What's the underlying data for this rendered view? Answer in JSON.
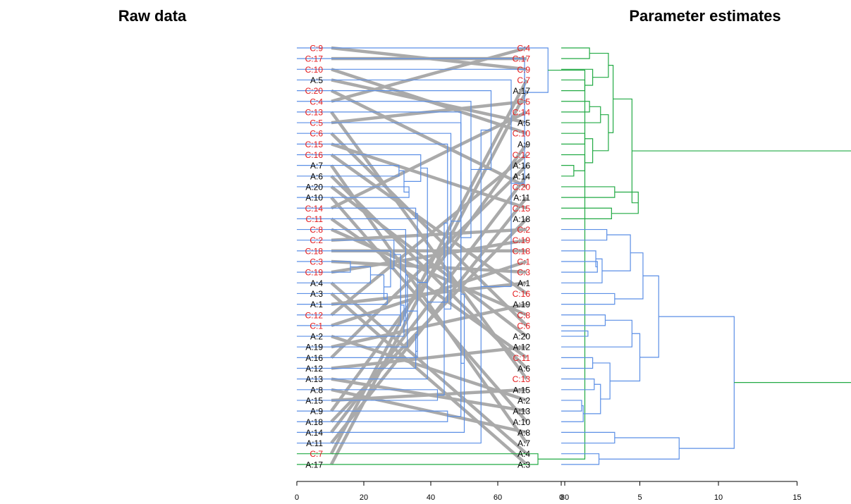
{
  "chart_data": {
    "type": "tanglegram",
    "colors": {
      "highlight_label": "#e41a1c",
      "normal_label": "#000000",
      "cluster_blue": "#5b8fe6",
      "cluster_green": "#22aa44",
      "connector": "#aaaaaa",
      "axis": "#000000"
    },
    "left": {
      "title": "Raw data",
      "axis_ticks": [
        "80",
        "60",
        "40",
        "20",
        "0"
      ],
      "axis_range": [
        0,
        80
      ],
      "axis_direction": "reversed",
      "leaves": [
        "C:9",
        "C:17",
        "C:10",
        "A:5",
        "C:20",
        "C:4",
        "C:13",
        "C:5",
        "C:6",
        "C:15",
        "C:16",
        "A:7",
        "A:6",
        "A:20",
        "A:10",
        "C:14",
        "C:11",
        "C:8",
        "C:2",
        "C:18",
        "C:3",
        "C:19",
        "A:4",
        "A:3",
        "A:1",
        "C:12",
        "C:1",
        "A:2",
        "A:19",
        "A:16",
        "A:12",
        "A:13",
        "A:8",
        "A:15",
        "A:9",
        "A:18",
        "A:14",
        "A:11",
        "C:7",
        "A:17"
      ],
      "merges": [
        {
          "a": 11,
          "b": 12,
          "h": 30.5,
          "c": "blue"
        },
        {
          "a": 13,
          "b": 14,
          "h": 33.5,
          "c": "blue"
        },
        {
          "a": 11.5,
          "b": 13.5,
          "h": 32.0,
          "c": "blue"
        },
        {
          "a": 10,
          "b": 12.5,
          "h": 37.0,
          "c": "blue"
        },
        {
          "a": 15,
          "b": 16,
          "h": 35.5,
          "c": "blue"
        },
        {
          "a": 20,
          "b": 21,
          "h": 16.0,
          "c": "blue"
        },
        {
          "a": 22,
          "b": 20.5,
          "h": 22.0,
          "c": "blue"
        },
        {
          "a": 23,
          "b": 24,
          "h": 27.0,
          "c": "blue"
        },
        {
          "a": 21.25,
          "b": 23.5,
          "h": 26.0,
          "c": "blue"
        },
        {
          "a": 19,
          "b": 22.375,
          "h": 28.0,
          "c": "blue"
        },
        {
          "a": 18,
          "b": 20.6875,
          "h": 29.0,
          "c": "blue"
        },
        {
          "a": 25,
          "b": 19.34375,
          "h": 31.0,
          "c": "blue"
        },
        {
          "a": 26,
          "b": 22.171875,
          "h": 31.0,
          "c": "blue"
        },
        {
          "a": 27,
          "b": 24.0859375,
          "h": 32.0,
          "c": "blue"
        },
        {
          "a": 17,
          "b": 25.54296875,
          "h": 32.5,
          "c": "blue"
        },
        {
          "a": 28,
          "b": 21.271484375,
          "h": 33.0,
          "c": "blue"
        },
        {
          "a": 29,
          "b": 24.6357421875,
          "h": 36.0,
          "c": "blue"
        },
        {
          "a": 30,
          "b": 26.81787109375,
          "h": 35.5,
          "c": "blue"
        },
        {
          "a": 15.5,
          "b": 28.408935546875,
          "h": 36.0,
          "c": "blue"
        },
        {
          "a": 11.25,
          "b": 21.9544677734375,
          "h": 39.0,
          "c": "blue"
        },
        {
          "a": 31,
          "b": 16.60223388671875,
          "h": 39.0,
          "c": "blue"
        },
        {
          "a": 9,
          "b": 23.801116943359375,
          "h": 45.0,
          "c": "blue"
        },
        {
          "a": 32,
          "b": 33,
          "h": 42.0,
          "c": "blue"
        },
        {
          "a": 16.400558471679688,
          "b": 32.5,
          "h": 44.0,
          "c": "blue"
        },
        {
          "a": 8,
          "b": 24.450279235839844,
          "h": 46.0,
          "c": "blue"
        },
        {
          "a": 7,
          "b": 16.225139617919922,
          "h": 49.0,
          "c": "blue"
        },
        {
          "a": 34,
          "b": 35,
          "h": 45.0,
          "c": "blue"
        },
        {
          "a": 11.612569808959961,
          "b": 34.5,
          "h": 49.0,
          "c": "blue"
        },
        {
          "a": 36,
          "b": 23.05628490447998,
          "h": 50.0,
          "c": "blue"
        },
        {
          "a": 6,
          "b": 29.52814245223999,
          "h": 49.0,
          "c": "blue"
        },
        {
          "a": 5,
          "b": 17.764071226119995,
          "h": 52.0,
          "c": "blue"
        },
        {
          "a": 4,
          "b": 11.382035613059998,
          "h": 58.0,
          "c": "blue"
        },
        {
          "a": 37,
          "b": 7.691017806529999,
          "h": 55.0,
          "c": "blue"
        },
        {
          "a": 3,
          "b": 22.345508903265,
          "h": 64.0,
          "c": "blue"
        },
        {
          "a": 2,
          "b": 12.6727544516325,
          "h": 68.0,
          "c": "blue"
        },
        {
          "a": 1,
          "b": 7.33637722581625,
          "h": 68.0,
          "c": "blue"
        },
        {
          "a": 0,
          "b": 4.168188612908125,
          "h": 75.0,
          "c": "blue"
        },
        {
          "a": 38,
          "b": 39,
          "h": 72.0,
          "c": "green"
        },
        {
          "a": 2.0840943064540625,
          "b": 38.5,
          "h": 86.0,
          "c": "green"
        }
      ]
    },
    "right": {
      "title": "Parameter estimates",
      "axis_ticks": [
        "0",
        "5",
        "10",
        "15"
      ],
      "axis_range": [
        0,
        15
      ],
      "leaves": [
        "C:4",
        "C:17",
        "C:9",
        "C:7",
        "A:17",
        "C:5",
        "C:14",
        "A:5",
        "C:10",
        "A:9",
        "C:12",
        "A:16",
        "A:14",
        "C:20",
        "A:11",
        "C:15",
        "A:18",
        "C:2",
        "C:19",
        "C:18",
        "C:1",
        "C:3",
        "A:1",
        "C:16",
        "A:19",
        "C:8",
        "C:6",
        "A:20",
        "A:12",
        "C:11",
        "A:6",
        "C:13",
        "A:15",
        "A:2",
        "A:13",
        "A:10",
        "A:8",
        "A:7",
        "A:4",
        "A:3"
      ],
      "merges": [
        {
          "a": 0,
          "b": 1,
          "h": 1.8,
          "c": "green"
        },
        {
          "a": 3,
          "b": 4,
          "h": 1.5,
          "c": "green"
        },
        {
          "a": 2,
          "b": 3.5,
          "h": 2.0,
          "c": "green"
        },
        {
          "a": 0.5,
          "b": 2.75,
          "h": 3.0,
          "c": "green"
        },
        {
          "a": 5,
          "b": 6,
          "h": 1.8,
          "c": "green"
        },
        {
          "a": 5.5,
          "b": 7,
          "h": 2.5,
          "c": "green"
        },
        {
          "a": 8,
          "b": 9,
          "h": 1.5,
          "c": "green"
        },
        {
          "a": 11,
          "b": 12,
          "h": 0.8,
          "c": "green"
        },
        {
          "a": 10,
          "b": 11.5,
          "h": 1.5,
          "c": "green"
        },
        {
          "a": 8.5,
          "b": 10.75,
          "h": 2.0,
          "c": "green"
        },
        {
          "a": 6.25,
          "b": 9.625,
          "h": 3.0,
          "c": "green"
        },
        {
          "a": 1.625,
          "b": 7.9375,
          "h": 3.3,
          "c": "green"
        },
        {
          "a": 13,
          "b": 14,
          "h": 3.4,
          "c": "green"
        },
        {
          "a": 15,
          "b": 16,
          "h": 3.2,
          "c": "green"
        },
        {
          "a": 13.5,
          "b": 15.5,
          "h": 4.9,
          "c": "green"
        },
        {
          "a": 4.78125,
          "b": 14.5,
          "h": 4.5,
          "c": "green"
        },
        {
          "a": 17,
          "b": 18,
          "h": 2.9,
          "c": "blue"
        },
        {
          "a": 20,
          "b": 21,
          "h": 2.3,
          "c": "blue"
        },
        {
          "a": 19,
          "b": 20.5,
          "h": 2.2,
          "c": "blue"
        },
        {
          "a": 22,
          "b": 19.75,
          "h": 2.6,
          "c": "blue"
        },
        {
          "a": 17.5,
          "b": 20.875,
          "h": 4.4,
          "c": "blue"
        },
        {
          "a": 23,
          "b": 24,
          "h": 3.4,
          "c": "blue"
        },
        {
          "a": 19.1875,
          "b": 23.5,
          "h": 5.2,
          "c": "blue"
        },
        {
          "a": 25,
          "b": 26,
          "h": 2.8,
          "c": "blue"
        },
        {
          "a": 26.5,
          "b": 27,
          "h": 1.7,
          "c": "blue"
        },
        {
          "a": 25.5,
          "b": 28,
          "h": 4.5,
          "c": "blue"
        },
        {
          "a": 29,
          "b": 30,
          "h": 2.0,
          "c": "blue"
        },
        {
          "a": 31,
          "b": 32,
          "h": 2.1,
          "c": "blue"
        },
        {
          "a": 33,
          "b": 34,
          "h": 1.3,
          "c": "blue"
        },
        {
          "a": 33.5,
          "b": 35,
          "h": 1.4,
          "c": "blue"
        },
        {
          "a": 31.5,
          "b": 34.25,
          "h": 2.5,
          "c": "blue"
        },
        {
          "a": 29.5,
          "b": 32.875,
          "h": 3.1,
          "c": "blue"
        },
        {
          "a": 26.75,
          "b": 31.1875,
          "h": 5.0,
          "c": "blue"
        },
        {
          "a": 21.34375,
          "b": 28.96875,
          "h": 6.2,
          "c": "blue"
        },
        {
          "a": 36,
          "b": 37,
          "h": 3.4,
          "c": "blue"
        },
        {
          "a": 38,
          "b": 39,
          "h": 2.4,
          "c": "blue"
        },
        {
          "a": 36.5,
          "b": 38.5,
          "h": 7.5,
          "c": "blue"
        },
        {
          "a": 25.15625,
          "b": 37.5,
          "h": 11.0,
          "c": "blue"
        },
        {
          "a": 9.640625,
          "b": 31.328125,
          "h": 18.5,
          "c": "green"
        }
      ]
    }
  }
}
